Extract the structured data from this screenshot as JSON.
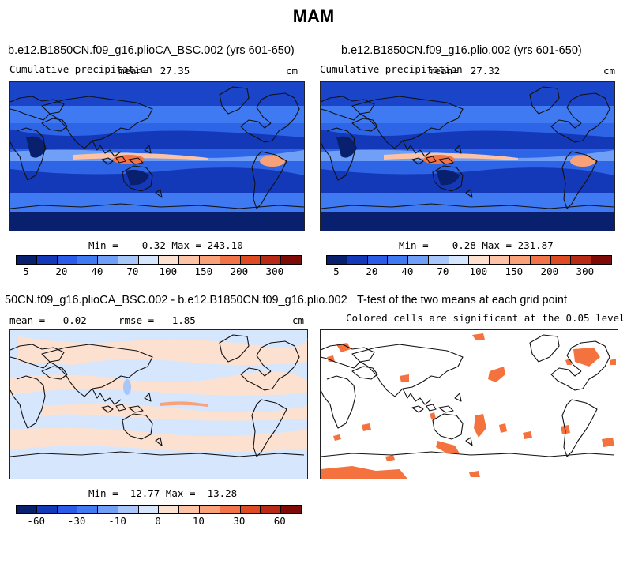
{
  "title": "MAM",
  "units": "cm",
  "colors": {
    "scale": [
      "#08206e",
      "#1339b8",
      "#2a5ce8",
      "#3f7af2",
      "#6f9ff6",
      "#a7c6fa",
      "#d6e6fd",
      "#fde1d0",
      "#fcc3a6",
      "#f9a27a",
      "#f27347",
      "#de4a22",
      "#b82a15",
      "#7e0b07"
    ],
    "sig_fill": "#f4723e",
    "diff_cool": "#d6e6fd",
    "diff_warm": "#fde1d0"
  },
  "chart_data": [
    {
      "type": "heatmap",
      "title": "b.e12.B1850CN.f09_g16.plioCA_BSC.002 (yrs 601-650)",
      "variable": "Cumulative precipitation",
      "mean_label": "mean=",
      "mean": "27.35",
      "min_label": "Min =",
      "min": "0.32",
      "max_label": "Max =",
      "max": "243.10",
      "colorbar_ticks": [
        "5",
        "20",
        "40",
        "70",
        "100",
        "150",
        "200",
        "300"
      ]
    },
    {
      "type": "heatmap",
      "title": "b.e12.B1850CN.f09_g16.plio.002 (yrs 601-650)",
      "variable": "Cumulative precipitation",
      "mean_label": "mean=",
      "mean": "27.32",
      "min_label": "Min =",
      "min": "0.28",
      "max_label": "Max =",
      "max": "231.87",
      "colorbar_ticks": [
        "5",
        "20",
        "40",
        "70",
        "100",
        "150",
        "200",
        "300"
      ]
    },
    {
      "type": "heatmap",
      "title": "50CN.f09_g16.plioCA_BSC.002 - b.e12.B1850CN.f09_g16.plio.002",
      "mean_label": "mean =",
      "mean": "0.02",
      "rmse_label": "rmse =",
      "rmse": "1.85",
      "min_label": "Min =",
      "min": "-12.77",
      "max_label": "Max =",
      "max": "13.28",
      "colorbar_ticks": [
        "-60",
        "-30",
        "-10",
        "0",
        "10",
        "30",
        "60"
      ]
    },
    {
      "type": "heatmap",
      "title": "T-test of the two means at each grid point",
      "subtitle": "Colored cells are significant at the 0.05 level"
    }
  ]
}
